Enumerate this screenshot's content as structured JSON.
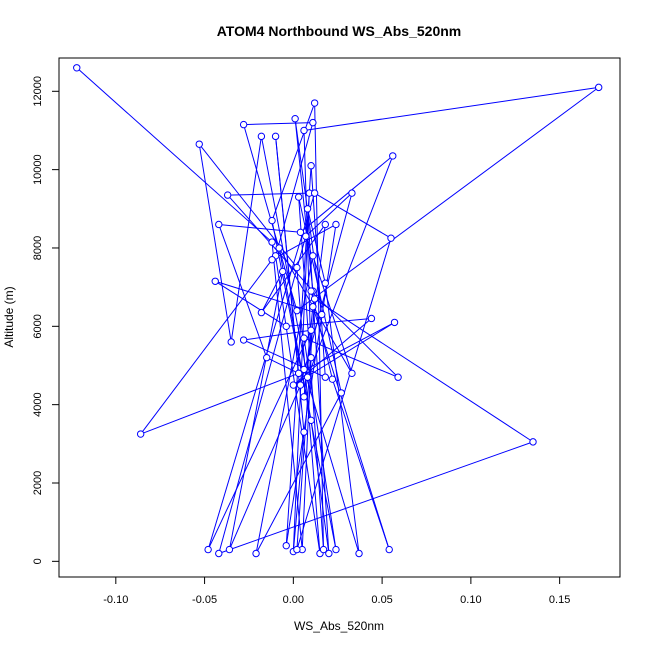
{
  "chart_data": {
    "type": "line",
    "title": "ATOM4 Northbound WS_Abs_520nm",
    "xlabel": "WS_Abs_520nm",
    "ylabel": "Altitude (m)",
    "xlim": [
      -0.132,
      0.184
    ],
    "ylim": [
      -400,
      12850
    ],
    "xticks": [
      -0.1,
      -0.05,
      0.0,
      0.05,
      0.1,
      0.15
    ],
    "xtick_labels": [
      "-0.10",
      "-0.05",
      "0.00",
      "0.05",
      "0.10",
      "0.15"
    ],
    "yticks": [
      0,
      2000,
      4000,
      6000,
      8000,
      10000,
      12000
    ],
    "ytick_labels": [
      "0",
      "2000",
      "4000",
      "6000",
      "8000",
      "10000",
      "12000"
    ],
    "grid": false,
    "legend": "none",
    "markers": "open-circle",
    "series": [
      {
        "color": "#0000ff",
        "points": [
          [
            -0.122,
            12600
          ],
          [
            -0.012,
            8150
          ],
          [
            0.005,
            300
          ],
          [
            0.01,
            5200
          ],
          [
            0.006,
            11000
          ],
          [
            0.172,
            12100
          ],
          [
            0.002,
            6400
          ],
          [
            -0.028,
            11150
          ],
          [
            0.011,
            11200
          ],
          [
            -0.01,
            7800
          ],
          [
            0.015,
            200
          ],
          [
            0.002,
            7500
          ],
          [
            -0.053,
            10650
          ],
          [
            -0.035,
            5600
          ],
          [
            -0.018,
            10850
          ],
          [
            0.008,
            4700
          ],
          [
            0.056,
            10350
          ],
          [
            0.004,
            8400
          ],
          [
            -0.042,
            8600
          ],
          [
            -0.015,
            5200
          ],
          [
            0.003,
            4800
          ],
          [
            -0.01,
            10850
          ],
          [
            0.006,
            3300
          ],
          [
            0.0,
            250
          ],
          [
            0.009,
            9400
          ],
          [
            -0.037,
            9350
          ],
          [
            0.011,
            6900
          ],
          [
            0.001,
            11300
          ],
          [
            0.016,
            6300
          ],
          [
            -0.044,
            7150
          ],
          [
            -0.004,
            6000
          ],
          [
            0.044,
            6200
          ],
          [
            0.0,
            4500
          ],
          [
            0.057,
            6100
          ],
          [
            0.003,
            4800
          ],
          [
            -0.086,
            3250
          ],
          [
            -0.012,
            7700
          ],
          [
            0.024,
            8600
          ],
          [
            -0.004,
            400
          ],
          [
            0.01,
            10100
          ],
          [
            0.018,
            4700
          ],
          [
            -0.028,
            5650
          ],
          [
            0.01,
            5900
          ],
          [
            -0.048,
            300
          ],
          [
            0.012,
            9400
          ],
          [
            0.055,
            8250
          ],
          [
            0.002,
            300
          ],
          [
            0.012,
            6700
          ],
          [
            0.135,
            3050
          ],
          [
            -0.042,
            200
          ],
          [
            0.007,
            8300
          ],
          [
            0.033,
            9400
          ],
          [
            0.004,
            4500
          ],
          [
            -0.036,
            300
          ],
          [
            -0.006,
            7400
          ],
          [
            -0.018,
            6350
          ],
          [
            0.018,
            8600
          ],
          [
            0.006,
            4200
          ],
          [
            0.011,
            6500
          ],
          [
            0.054,
            300
          ],
          [
            0.022,
            4650
          ],
          [
            0.01,
            6900
          ],
          [
            0.059,
            4700
          ],
          [
            0.006,
            5700
          ],
          [
            0.024,
            300
          ],
          [
            -0.012,
            8700
          ],
          [
            0.012,
            11700
          ],
          [
            0.017,
            300
          ],
          [
            0.003,
            9300
          ],
          [
            0.027,
            4300
          ],
          [
            -0.021,
            200
          ],
          [
            0.011,
            7800
          ],
          [
            0.033,
            4800
          ],
          [
            -0.008,
            8000
          ],
          [
            0.01,
            3600
          ],
          [
            0.02,
            200
          ],
          [
            0.008,
            9000
          ],
          [
            0.018,
            7100
          ],
          [
            0.037,
            200
          ],
          [
            0.006,
            4900
          ]
        ]
      }
    ]
  }
}
